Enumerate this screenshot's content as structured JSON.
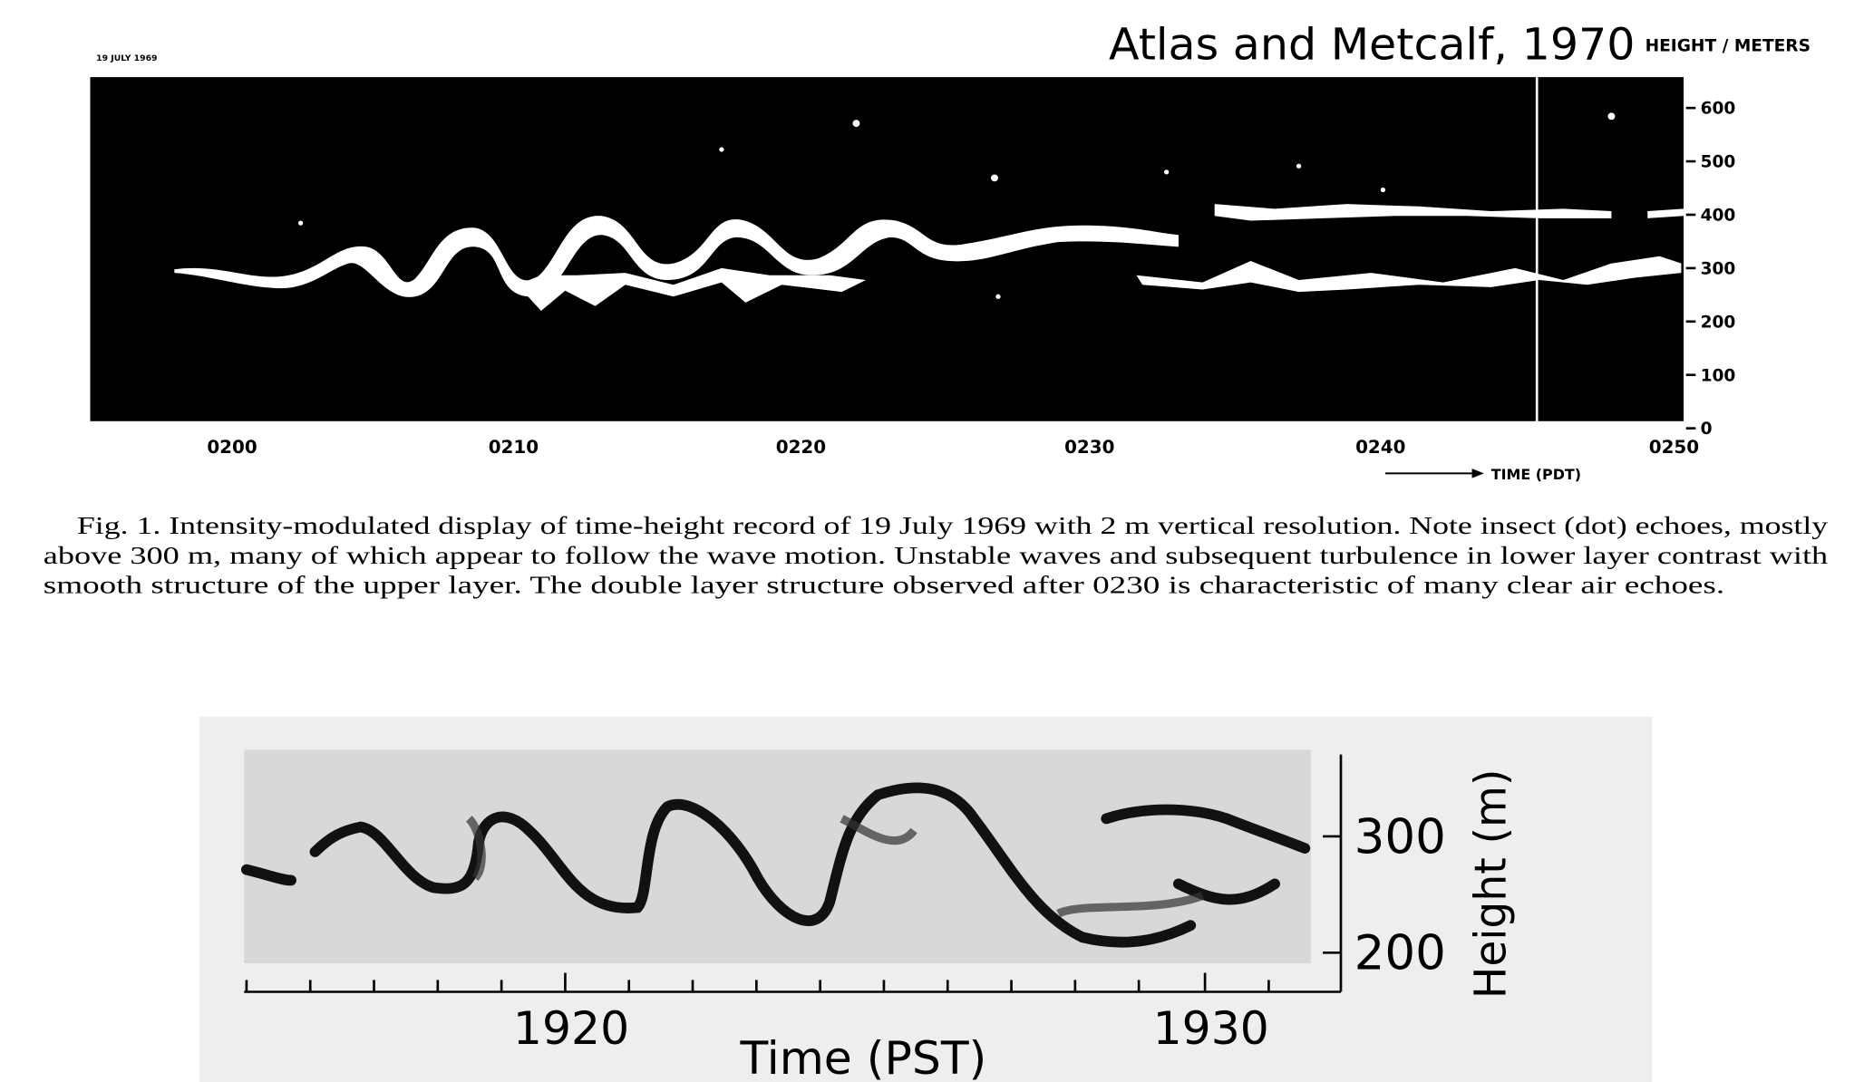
{
  "header": {
    "title": "Atlas and Metcalf, 1970"
  },
  "figure_top": {
    "date": "19 JULY 1969",
    "height_axis_title": "HEIGHT / METERS",
    "height_ticks": [
      600,
      500,
      400,
      300,
      200,
      100,
      0
    ],
    "time_ticks": [
      "0200",
      "0210",
      "0220",
      "0230",
      "0240",
      "0250"
    ],
    "time_axis_title": "TIME (PDT)"
  },
  "caption": {
    "lines": [
      "Fig. 1. Intensity-modulated display of time-height record of 19 July 1969 with 2 m vertical resolution. Note insect (dot) echoes, mostly",
      "above 300 m, many of which appear to follow the wave motion. Unstable waves and subsequent turbulence in lower layer contrast with",
      "smooth structure of the upper layer. The double layer structure observed after 0230 is characteristic of many clear air echoes."
    ]
  },
  "figure_bottom": {
    "height_ticks": [
      300,
      200
    ],
    "height_axis_title": "Height (m)",
    "time_ticks": [
      1920,
      1930
    ],
    "time_axis_title": "Time (PST)"
  }
}
